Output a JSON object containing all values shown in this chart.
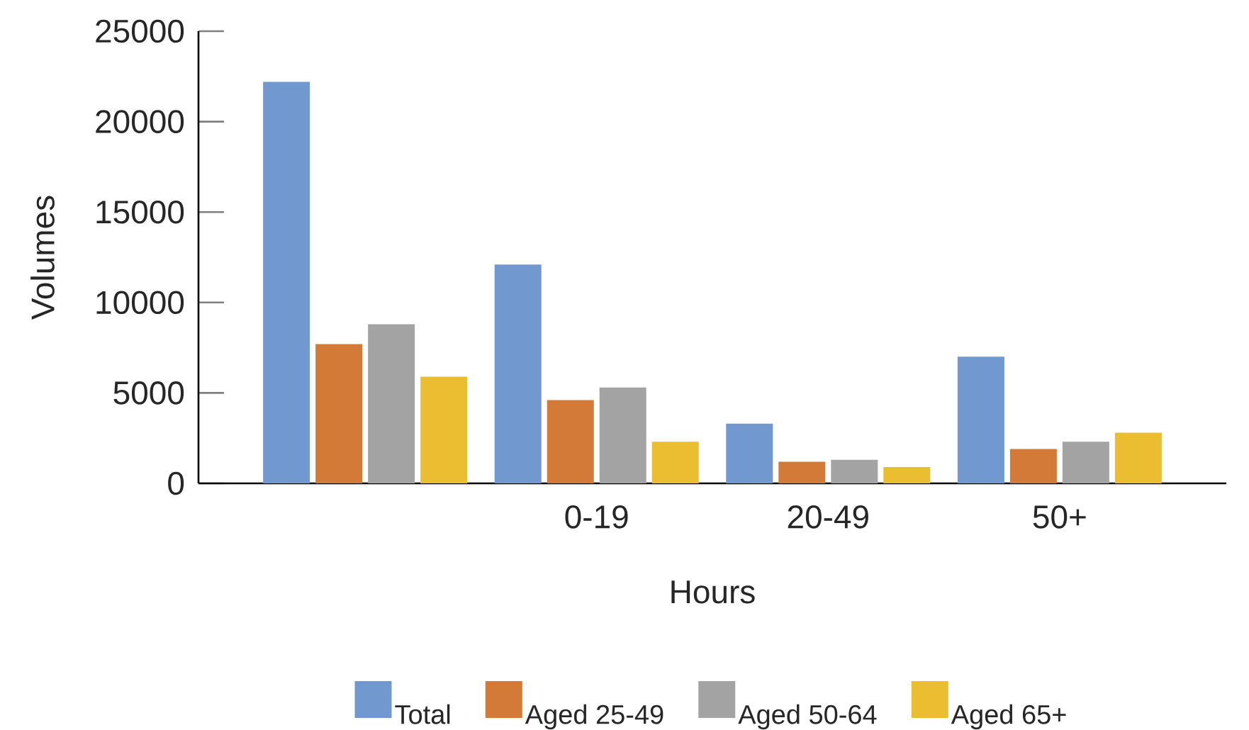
{
  "chart_data": {
    "type": "bar",
    "xlabel": "Hours",
    "ylabel": "Volumes",
    "categories": [
      null,
      "0-19",
      "20-49",
      "50+"
    ],
    "series": [
      {
        "name": "Total",
        "color": "#7199cf",
        "values": [
          22200,
          12100,
          3300,
          7000
        ]
      },
      {
        "name": "Aged 25-49",
        "color": "#d47a38",
        "values": [
          7700,
          4600,
          1200,
          1900
        ]
      },
      {
        "name": "Aged 50-64",
        "color": "#a3a3a3",
        "values": [
          8800,
          5300,
          1300,
          2300
        ]
      },
      {
        "name": "Aged 65+",
        "color": "#ebbd31",
        "values": [
          5900,
          2300,
          900,
          2800
        ]
      }
    ],
    "ylim": [
      0,
      25000
    ],
    "yticks": [
      0,
      5000,
      10000,
      15000,
      20000,
      25000
    ],
    "legend": "bottom"
  }
}
